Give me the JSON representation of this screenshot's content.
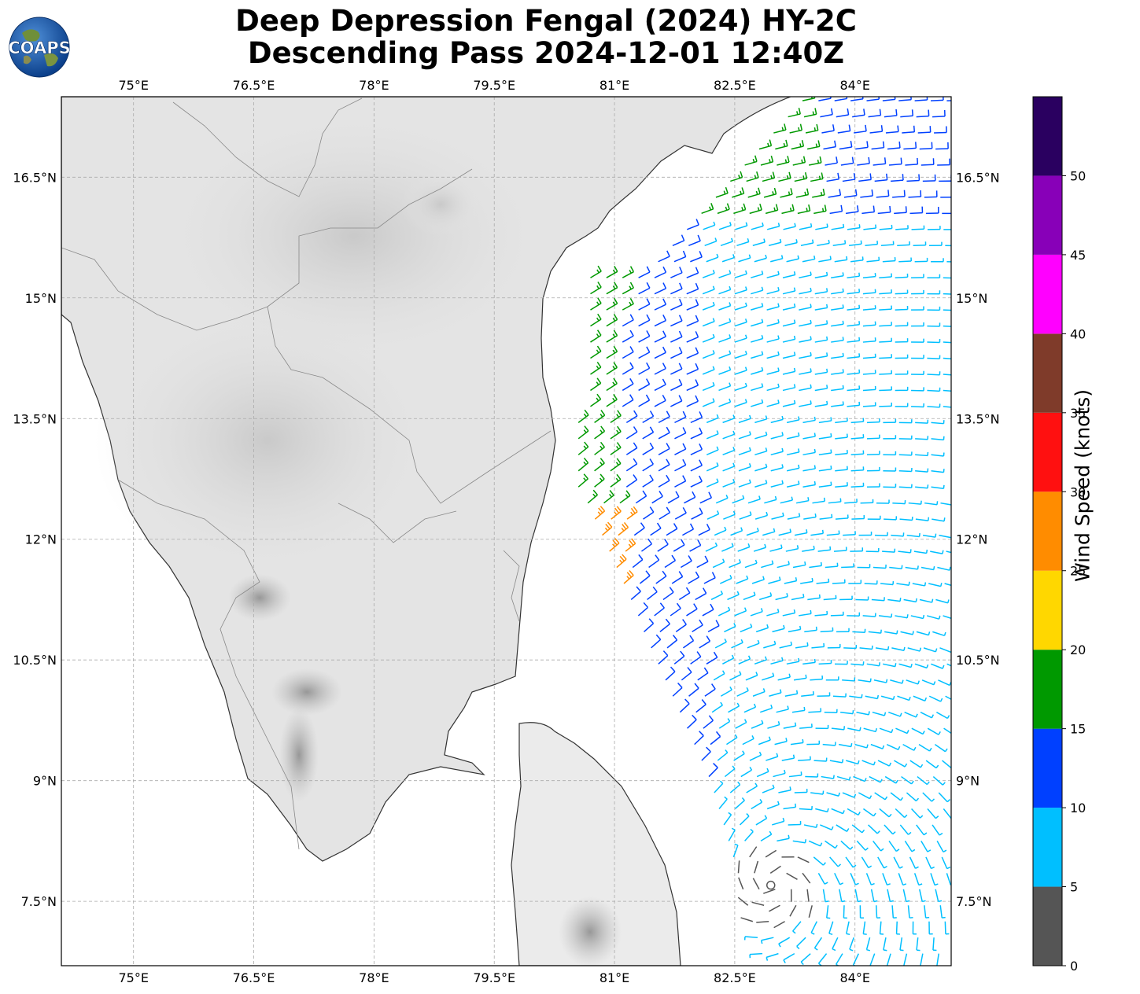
{
  "title_line1": "Deep Depression Fengal (2024) HY-2C",
  "title_line2": "Descending Pass 2024-12-01 12:40Z",
  "logo_text": "COAPS",
  "map": {
    "lon_range": [
      74.1,
      85.2
    ],
    "lat_range": [
      6.7,
      17.5
    ],
    "lon_ticks": [
      "75°E",
      "76.5°E",
      "78°E",
      "79.5°E",
      "81°E",
      "82.5°E",
      "84°E"
    ],
    "lon_values": [
      75,
      76.5,
      78,
      79.5,
      81,
      82.5,
      84
    ],
    "lat_ticks": [
      "7.5°N",
      "9°N",
      "10.5°N",
      "12°N",
      "13.5°N",
      "15°N",
      "16.5°N"
    ],
    "lat_values": [
      7.5,
      9,
      10.5,
      12,
      13.5,
      15,
      16.5
    ],
    "storm_center": {
      "lon": 82.95,
      "lat": 7.7
    }
  },
  "colorbar": {
    "label": "Wind Speed (knots)",
    "ticks": [
      "0",
      "5",
      "10",
      "15",
      "20",
      "25",
      "30",
      "35",
      "40",
      "45",
      "50"
    ],
    "bins": [
      {
        "min": 0,
        "max": 5,
        "color": "#555555"
      },
      {
        "min": 5,
        "max": 10,
        "color": "#00bfff"
      },
      {
        "min": 10,
        "max": 15,
        "color": "#0040ff"
      },
      {
        "min": 15,
        "max": 20,
        "color": "#009900"
      },
      {
        "min": 20,
        "max": 25,
        "color": "#ffd700"
      },
      {
        "min": 25,
        "max": 30,
        "color": "#ff8c00"
      },
      {
        "min": 30,
        "max": 35,
        "color": "#ff1010"
      },
      {
        "min": 35,
        "max": 40,
        "color": "#7f3b2a"
      },
      {
        "min": 40,
        "max": 45,
        "color": "#ff00ff"
      },
      {
        "min": 45,
        "max": 50,
        "color": "#8800b8"
      },
      {
        "min": 50,
        "max": 55,
        "color": "#2a0060"
      }
    ]
  },
  "colors": {
    "coastline": "#333333",
    "land_shade": "#c9c9c9",
    "grid": "#aaaaaa"
  }
}
